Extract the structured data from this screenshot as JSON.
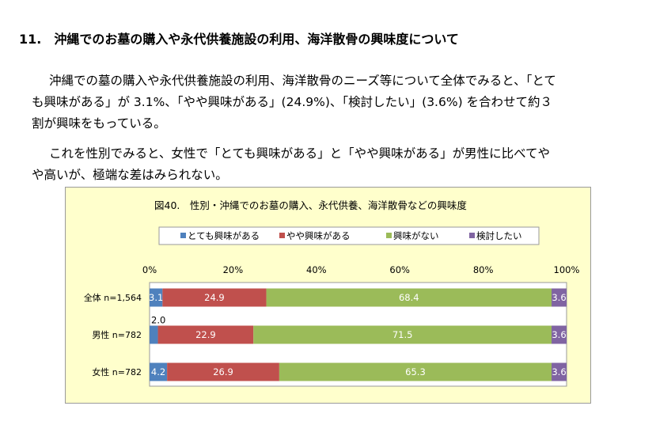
{
  "document": {
    "heading": "11.　沖縄でのお墓の購入や永代供養施設の利用、海洋散骨の興味度について",
    "para1_line1": "沖縄での墓の購入や永代供養施設の利用、海洋散骨のニーズ等について全体でみると、「とて",
    "para1_line2": "も興味がある」が 3.1%、「やや興味がある」(24.9%)、「検討したい」(3.6%) を合わせて約３",
    "para1_line3": "割が興味をもっている。",
    "para2_line1": "これを性別でみると、女性で「とても興味がある」と「やや興味がある」が男性に比べてや",
    "para2_line2": "や高いが、極端な差はみられない。"
  },
  "chart_data": {
    "type": "bar",
    "orientation": "horizontal",
    "stacked": true,
    "title": "図40.　性別・沖縄でのお墓の購入、永代供養、海洋散骨などの興味度",
    "categories": [
      "全体 n=1,564",
      "男性 n=782",
      "女性 n=782"
    ],
    "series": [
      {
        "name": "とても興味がある",
        "color": "#4f81bd",
        "values": [
          3.1,
          2.0,
          4.2
        ]
      },
      {
        "name": "やや興味がある",
        "color": "#c0504d",
        "values": [
          24.9,
          22.9,
          26.9
        ]
      },
      {
        "name": "興味がない",
        "color": "#9bbb59",
        "values": [
          68.4,
          71.5,
          65.3
        ]
      },
      {
        "name": "検討したい",
        "color": "#8064a2",
        "values": [
          3.6,
          3.6,
          3.6
        ]
      }
    ],
    "xlim": [
      0,
      100
    ],
    "ticks": [
      "0%",
      "20%",
      "40%",
      "60%",
      "80%",
      "100%"
    ],
    "legend_position": "top",
    "grid": false
  }
}
